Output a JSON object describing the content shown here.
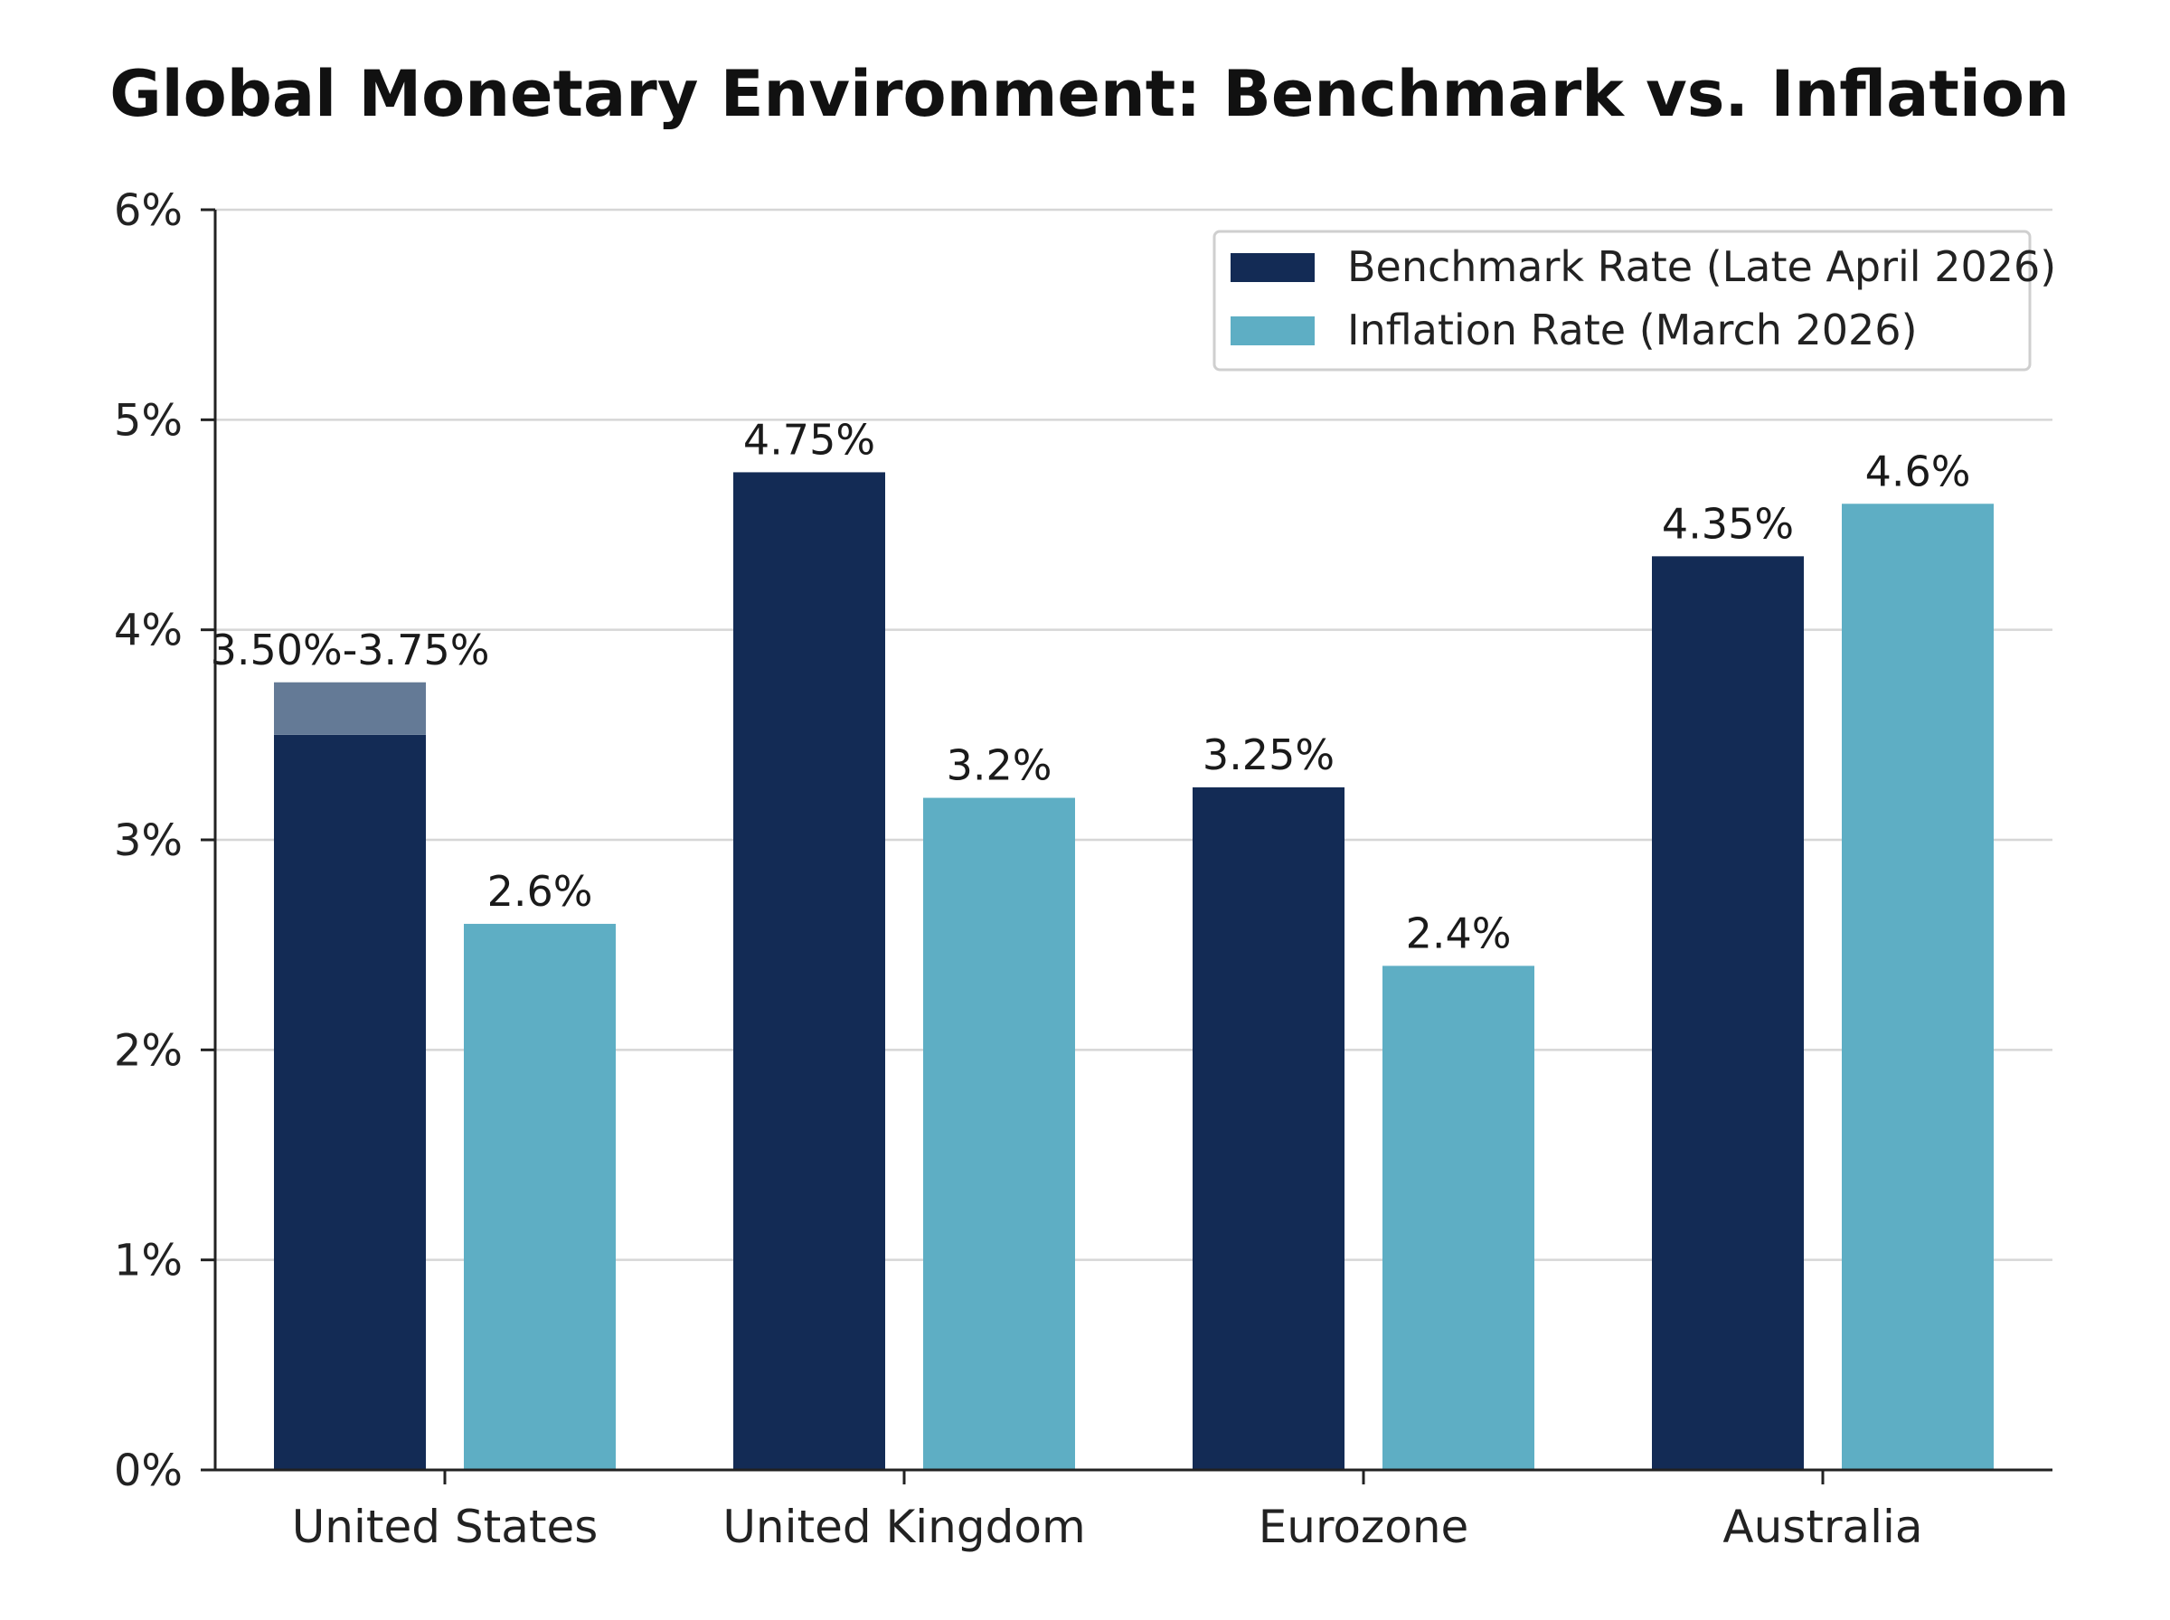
{
  "colors": {
    "benchmark": "#132b55",
    "inflation": "#5eaec4",
    "range_band": "#647a96",
    "grid": "#d6d6d6",
    "axis": "#222222"
  },
  "chart_data": {
    "type": "bar",
    "title": "Global Monetary Environment: Benchmark vs. Inflation",
    "xlabel": "",
    "ylabel": "",
    "ylim": [
      0,
      6
    ],
    "y_ticks": [
      0,
      1,
      2,
      3,
      4,
      5,
      6
    ],
    "y_tick_labels": [
      "0%",
      "1%",
      "2%",
      "3%",
      "4%",
      "5%",
      "6%"
    ],
    "grid": true,
    "legend_position": "top-right",
    "categories": [
      "United States",
      "United Kingdom",
      "Eurozone",
      "Australia"
    ],
    "series": [
      {
        "name": "Benchmark Rate (Late April 2026)",
        "values": [
          3.75,
          4.75,
          3.25,
          4.35
        ],
        "range_low": [
          3.5,
          null,
          null,
          null
        ],
        "labels": [
          "3.50%-3.75%",
          "4.75%",
          "3.25%",
          "4.35%"
        ]
      },
      {
        "name": "Inflation Rate (March 2026)",
        "values": [
          2.6,
          3.2,
          2.4,
          4.6
        ],
        "labels": [
          "2.6%",
          "3.2%",
          "2.4%",
          "4.6%"
        ]
      }
    ]
  }
}
